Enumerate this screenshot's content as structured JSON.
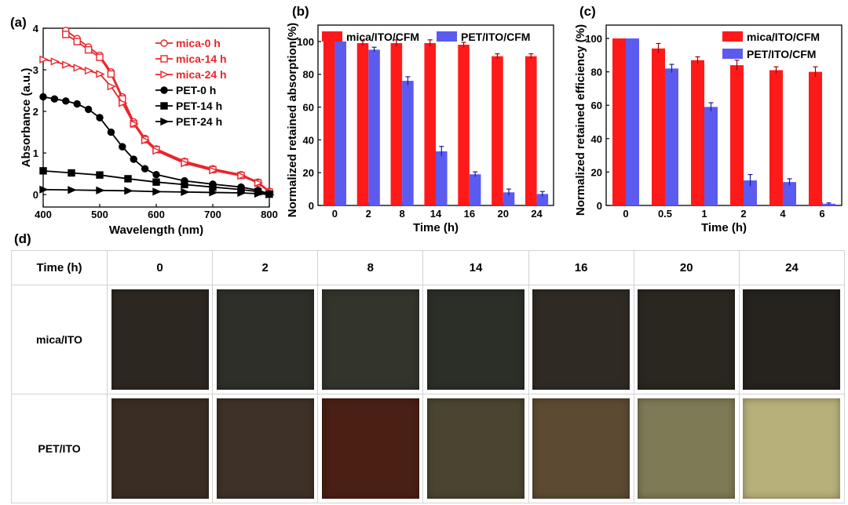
{
  "panel_labels": [
    "(a)",
    "(b)",
    "(c)",
    "(d)"
  ],
  "chart_data": [
    {
      "type": "line",
      "panel": "(a)",
      "xlabel": "Wavelength (nm)",
      "ylabel": "Absorbance (a.u.)",
      "xlim": [
        400,
        800
      ],
      "ylim": [
        -0.3,
        4
      ],
      "xticks": [
        400,
        500,
        600,
        700,
        800
      ],
      "yticks": [
        0,
        1,
        2,
        3,
        4
      ],
      "legend_position": "top-right",
      "series": [
        {
          "name": "mica-0 h",
          "color": "#e8262c",
          "marker": "open-circle",
          "x": [
            440,
            460,
            480,
            500,
            520,
            540,
            560,
            580,
            600,
            650,
            700,
            750,
            780,
            800
          ],
          "y": [
            3.95,
            3.75,
            3.55,
            3.35,
            2.95,
            2.35,
            1.75,
            1.35,
            1.1,
            0.8,
            0.62,
            0.48,
            0.3,
            0.08
          ]
        },
        {
          "name": "mica-14 h",
          "color": "#e8262c",
          "marker": "open-square",
          "x": [
            440,
            460,
            480,
            500,
            520,
            540,
            560,
            580,
            600,
            650,
            700,
            750,
            780,
            800
          ],
          "y": [
            3.85,
            3.68,
            3.48,
            3.3,
            2.9,
            2.3,
            1.7,
            1.32,
            1.08,
            0.78,
            0.6,
            0.46,
            0.28,
            0.06
          ]
        },
        {
          "name": "mica-24 h",
          "color": "#e8262c",
          "marker": "open-triangle-right",
          "x": [
            400,
            420,
            440,
            460,
            480,
            500,
            520,
            540,
            560,
            580,
            600,
            650,
            700,
            750,
            780,
            800
          ],
          "y": [
            3.25,
            3.2,
            3.12,
            3.05,
            2.98,
            2.9,
            2.6,
            2.2,
            1.7,
            1.3,
            1.05,
            0.75,
            0.58,
            0.45,
            0.28,
            0.06
          ]
        },
        {
          "name": "PET-0 h",
          "color": "#000000",
          "marker": "filled-circle",
          "x": [
            400,
            420,
            440,
            460,
            480,
            500,
            520,
            540,
            560,
            580,
            600,
            650,
            700,
            750,
            780,
            800
          ],
          "y": [
            2.35,
            2.3,
            2.25,
            2.18,
            2.05,
            1.85,
            1.5,
            1.15,
            0.85,
            0.62,
            0.48,
            0.33,
            0.25,
            0.18,
            0.1,
            0.02
          ]
        },
        {
          "name": "PET-14 h",
          "color": "#000000",
          "marker": "filled-square",
          "x": [
            400,
            450,
            500,
            550,
            600,
            650,
            700,
            750,
            780,
            800
          ],
          "y": [
            0.57,
            0.52,
            0.47,
            0.38,
            0.3,
            0.24,
            0.18,
            0.12,
            0.07,
            0.01
          ]
        },
        {
          "name": "PET-24 h",
          "color": "#000000",
          "marker": "filled-triangle-right",
          "x": [
            400,
            450,
            500,
            550,
            600,
            650,
            700,
            750,
            780,
            800
          ],
          "y": [
            0.12,
            0.11,
            0.1,
            0.09,
            0.07,
            0.06,
            0.05,
            0.04,
            0.02,
            0.0
          ]
        }
      ]
    },
    {
      "type": "bar",
      "panel": "(b)",
      "xlabel": "Time (h)",
      "ylabel": "Normalized retained absorption(%)",
      "ylim": [
        0,
        110
      ],
      "yticks": [
        0,
        20,
        40,
        60,
        80,
        100
      ],
      "legend_position": "top",
      "categories": [
        "0",
        "2",
        "8",
        "14",
        "16",
        "20",
        "24"
      ],
      "series": [
        {
          "name": "mica/ITO/CFM",
          "color": "#ff1a1a",
          "values": [
            100,
            99,
            99,
            99,
            98,
            91,
            91
          ],
          "errors": [
            0,
            1.5,
            2,
            2,
            1.5,
            1.5,
            1.5
          ]
        },
        {
          "name": "PET/ITO/CFM",
          "color": "#5b5bef",
          "values": [
            100,
            95,
            76,
            33,
            19,
            8,
            7
          ],
          "errors": [
            0,
            1.5,
            2.5,
            3,
            1.5,
            2,
            1.5
          ]
        }
      ]
    },
    {
      "type": "bar",
      "panel": "(c)",
      "xlabel": "Time (h)",
      "ylabel": "Normalized retained efficiency (%)",
      "ylim": [
        0,
        108
      ],
      "yticks": [
        0,
        20,
        40,
        60,
        80,
        100
      ],
      "legend_position": "top-right",
      "categories": [
        "0",
        "0.5",
        "1",
        "2",
        "4",
        "6"
      ],
      "series": [
        {
          "name": "mica/ITO/CFM",
          "color": "#ff1a1a",
          "values": [
            100,
            94,
            87,
            84,
            81,
            80
          ],
          "errors": [
            0,
            3,
            2,
            3,
            2,
            3
          ]
        },
        {
          "name": "PET/ITO/CFM",
          "color": "#5b5bef",
          "values": [
            100,
            82,
            59,
            15,
            14,
            1
          ],
          "errors": [
            0,
            2.5,
            2.5,
            3.5,
            2,
            0.5
          ]
        }
      ]
    }
  ],
  "photo_table": {
    "header_label": "Time (h)",
    "times": [
      "0",
      "2",
      "8",
      "14",
      "16",
      "20",
      "24"
    ],
    "rows": [
      {
        "label": "mica/ITO",
        "swatches": [
          "#2d2722",
          "#2e2f28",
          "#33342b",
          "#2c2f28",
          "#2f2b24",
          "#2a2620",
          "#26221d"
        ]
      },
      {
        "label": "PET/ITO",
        "swatches": [
          "#3a2e24",
          "#3e3128",
          "#4a1f14",
          "#4a4530",
          "#5c4a33",
          "#7d7a55",
          "#b7b07a"
        ]
      }
    ]
  }
}
